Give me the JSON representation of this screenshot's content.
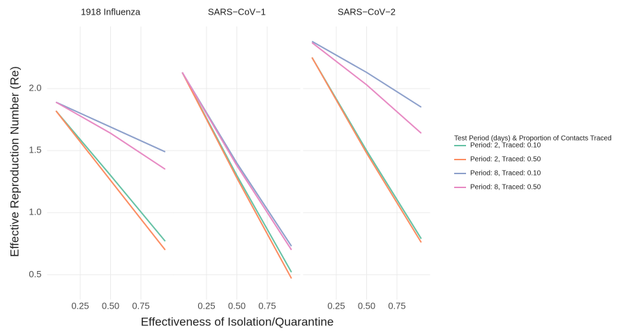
{
  "x_label": "Effectiveness of Isolation/Quarantine",
  "y_label": "Effective Reproduction Number (Re)",
  "legend_title": "Test Period (days) & Proportion of Contacts Traced",
  "chart_data": [
    {
      "type": "line",
      "title": "1918 Influenza",
      "x": [
        0.05,
        0.5,
        0.95
      ],
      "xlim": [
        0,
        1
      ],
      "xticks": [
        0.25,
        {
          "value": 0.5,
          "label": "0.50"
        },
        0.75
      ],
      "ylim": [
        0.3,
        2.5
      ],
      "yticks": [
        0.5,
        {
          "value": 1,
          "label": "1.0"
        },
        1.5,
        {
          "value": 2,
          "label": "2.0"
        }
      ],
      "grid": true,
      "series": [
        {
          "name": "Period: 2, Traced: 0.10",
          "color": "#66c2a5",
          "values": [
            1.82,
            1.3,
            0.77
          ]
        },
        {
          "name": "Period: 2, Traced: 0.50",
          "color": "#fc8d62",
          "values": [
            1.82,
            1.26,
            0.7
          ]
        },
        {
          "name": "Period: 8, Traced: 0.10",
          "color": "#8da0cb",
          "values": [
            1.89,
            1.69,
            1.49
          ]
        },
        {
          "name": "Period: 8, Traced: 0.50",
          "color": "#e78ac3",
          "values": [
            1.89,
            1.64,
            1.35
          ]
        }
      ]
    },
    {
      "type": "line",
      "title": "SARS−CoV−1",
      "x": [
        0.05,
        0.5,
        0.95
      ],
      "xlim": [
        0,
        1
      ],
      "xticks": [
        0.25,
        {
          "value": 0.5,
          "label": "0.50"
        },
        0.75
      ],
      "series": [
        {
          "name": "Period: 2, Traced: 0.10",
          "color": "#66c2a5",
          "values": [
            2.13,
            1.3,
            0.52
          ]
        },
        {
          "name": "Period: 2, Traced: 0.50",
          "color": "#fc8d62",
          "values": [
            2.13,
            1.28,
            0.47
          ]
        },
        {
          "name": "Period: 8, Traced: 0.10",
          "color": "#8da0cb",
          "values": [
            2.13,
            1.4,
            0.73
          ]
        },
        {
          "name": "Period: 8, Traced: 0.50",
          "color": "#e78ac3",
          "values": [
            2.13,
            1.38,
            0.7
          ]
        }
      ]
    },
    {
      "type": "line",
      "title": "SARS−CoV−2",
      "x": [
        0.05,
        0.5,
        0.95
      ],
      "xlim": [
        0,
        1
      ],
      "xticks": [
        0.25,
        {
          "value": 0.5,
          "label": "0.50"
        },
        0.75
      ],
      "series": [
        {
          "name": "Period: 2, Traced: 0.10",
          "color": "#66c2a5",
          "values": [
            2.25,
            1.5,
            0.79
          ]
        },
        {
          "name": "Period: 2, Traced: 0.50",
          "color": "#fc8d62",
          "values": [
            2.25,
            1.48,
            0.76
          ]
        },
        {
          "name": "Period: 8, Traced: 0.10",
          "color": "#8da0cb",
          "values": [
            2.38,
            2.13,
            1.85
          ]
        },
        {
          "name": "Period: 8, Traced: 0.50",
          "color": "#e78ac3",
          "values": [
            2.37,
            2.03,
            1.64
          ]
        }
      ]
    }
  ]
}
